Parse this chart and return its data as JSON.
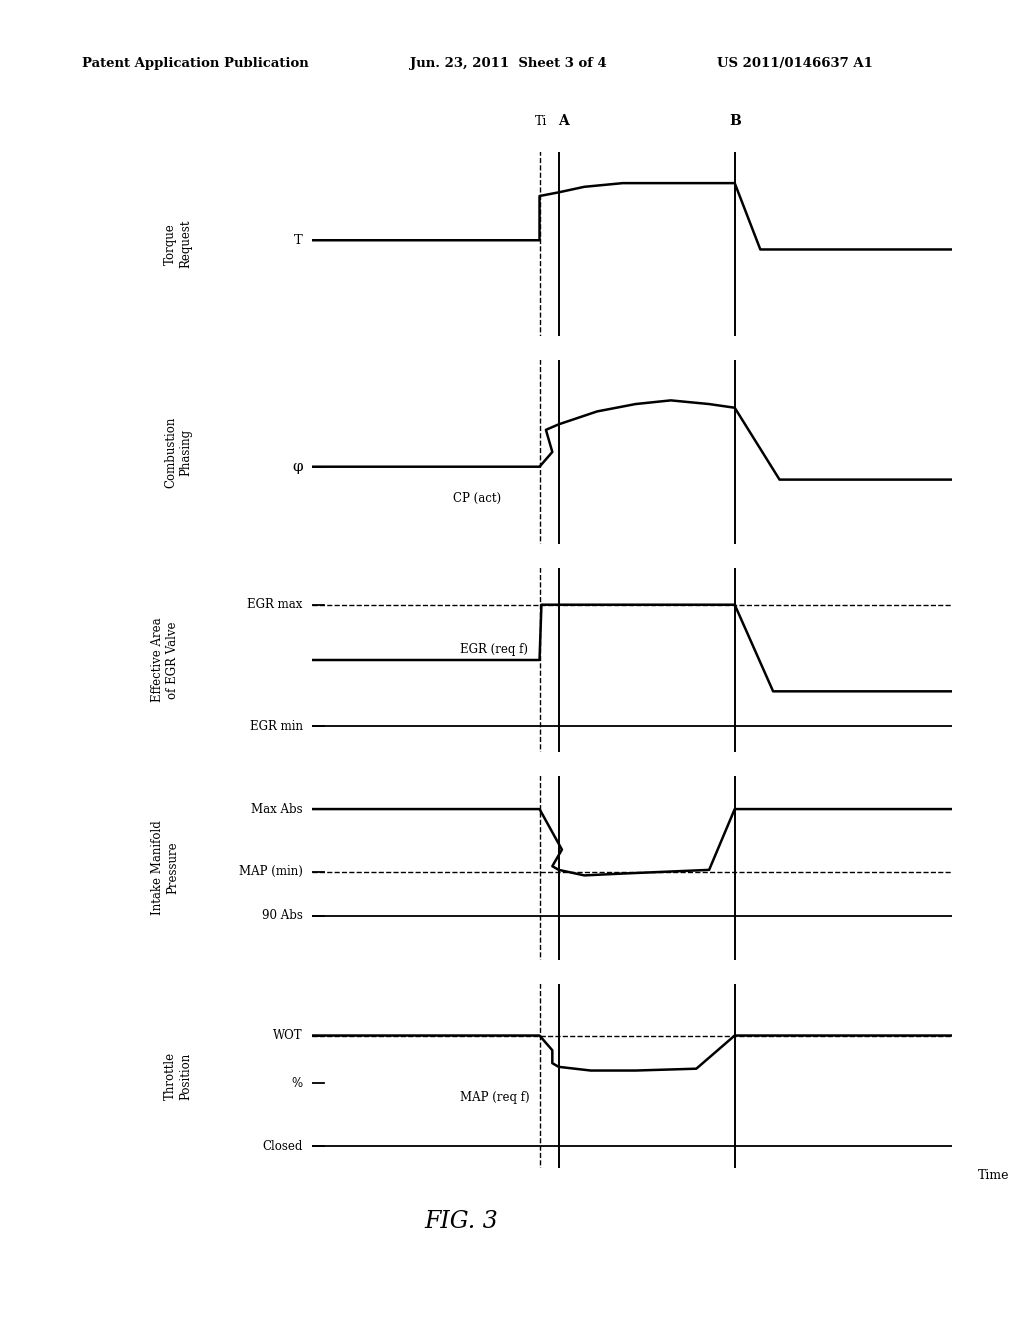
{
  "bg_color": "#ffffff",
  "header_left": "Patent Application Publication",
  "header_mid": "Jun. 23, 2011  Sheet 3 of 4",
  "header_right": "US 2011/0146637 A1",
  "fig_label": "FIG. 3",
  "xTi": 0.355,
  "xA": 0.385,
  "xB": 0.66,
  "panel_ylabels": [
    "Torque\nRequest",
    "Combustion\nPhasing",
    "Effective Area\nof EGR Valve",
    "Intake Manifold\nPressure",
    "Throttle\nPosition"
  ],
  "time_label": "Time"
}
